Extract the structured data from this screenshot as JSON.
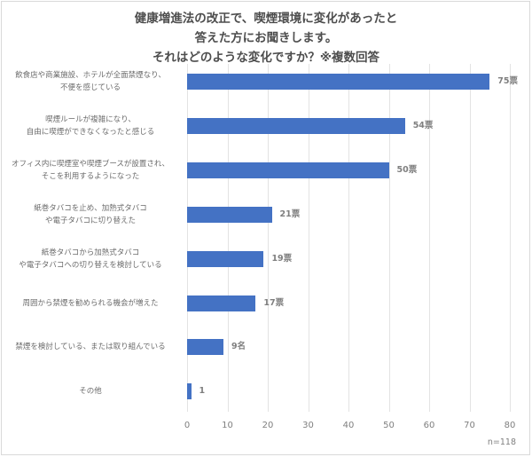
{
  "chart_data": {
    "type": "bar",
    "orientation": "horizontal",
    "title": "健康増進法の改正で、喫煙環境に変化があったと答えた方にお聞きします。それはどのような変化ですか？※複数回答",
    "title_lines": [
      "健康増進法の改正で、喫煙環境に変化があったと",
      "答えた方にお聞きします。",
      "それはどのような変化ですか？※複数回答"
    ],
    "categories": [
      "飲食店や商業施設、ホテルが全面禁煙なり、不便を感じている",
      "喫煙ルールが複雑になり、自由に喫煙ができなくなったと感じる",
      "オフィス内に喫煙室や喫煙ブースが設置され、そこを利用するようになった",
      "紙巻タバコを止め、加熱式タバコや電子タバコに切り替えた",
      "紙巻タバコから加熱式タバコや電子タバコへの切り替えを検討している",
      "周囲から禁煙を勧められる機会が増えた",
      "禁煙を検討している、または取り組んでいる",
      "その他"
    ],
    "category_lines": [
      [
        "飲食店や商業施設、ホテルが全面禁煙なり、",
        "不便を感じている"
      ],
      [
        "喫煙ルールが複雑になり、",
        "自由に喫煙ができなくなったと感じる"
      ],
      [
        "オフィス内に喫煙室や喫煙ブースが設置され、",
        "そこを利用するようになった"
      ],
      [
        "紙巻タバコを止め、加熱式タバコ",
        "や電子タバコに切り替えた"
      ],
      [
        "紙巻タバコから加熱式タバコ",
        "や電子タバコへの切り替えを検討している"
      ],
      [
        "周囲から禁煙を勧められる機会が増えた"
      ],
      [
        "禁煙を検討している、または取り組んでいる"
      ],
      [
        "その他"
      ]
    ],
    "values": [
      75,
      54,
      50,
      21,
      19,
      17,
      9,
      1
    ],
    "data_labels": [
      "75票",
      "54票",
      "50票",
      "21票",
      "19票",
      "17票",
      "9名",
      "1"
    ],
    "xlabel": "",
    "ylabel": "",
    "xlim": [
      0,
      80
    ],
    "xticks": [
      "0",
      "10",
      "20",
      "30",
      "40",
      "50",
      "60",
      "70",
      "80"
    ],
    "grid": true,
    "legend": null,
    "annotation": "n=118",
    "bar_color": "#4472c4"
  }
}
